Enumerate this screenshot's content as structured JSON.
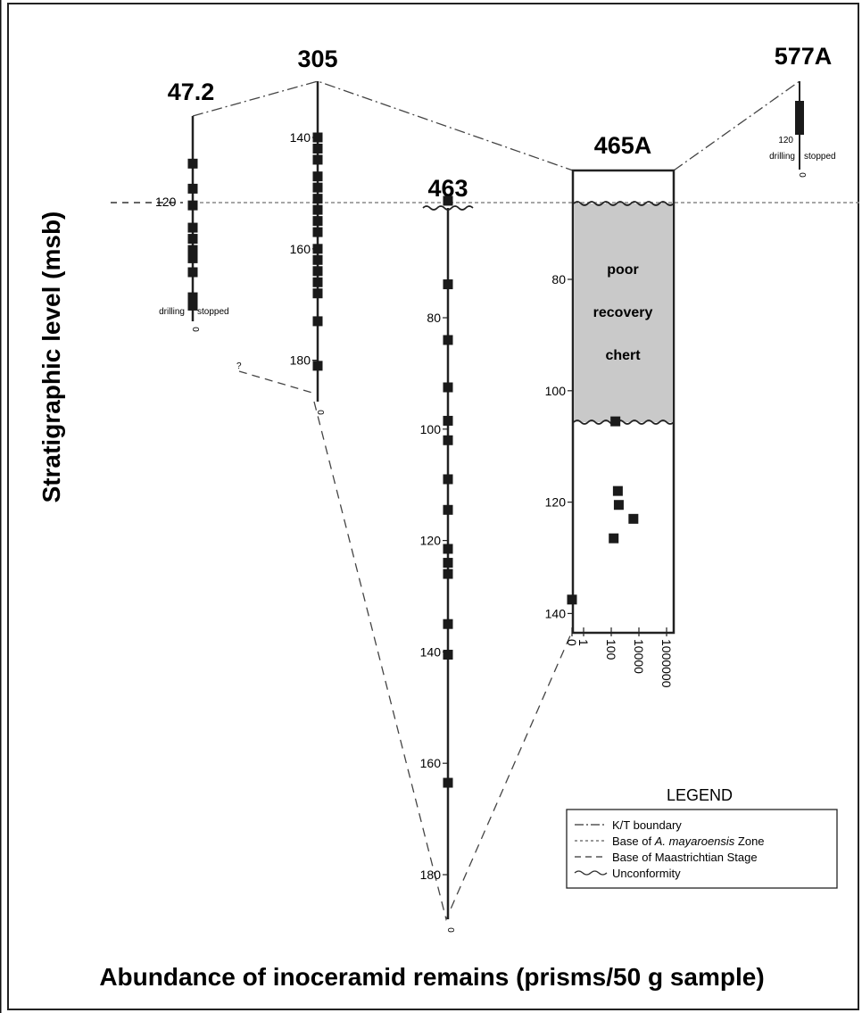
{
  "chart_data": {
    "type": "scatter",
    "title": "",
    "xlabel": "Abundance of inoceramid remains (prisms/50 g sample)",
    "ylabel": "Stratigraphic level (msb)",
    "sites": [
      {
        "name": "47.2",
        "depth_ticks": [
          120
        ],
        "abundance_zero_label": "0",
        "note_left": "drilling",
        "note_right": "stopped",
        "points": [
          {
            "y": 113,
            "x": 0
          },
          {
            "y": 117.5,
            "x": 0
          },
          {
            "y": 120.5,
            "x": 0
          },
          {
            "y": 124.5,
            "x": 0
          },
          {
            "y": 126.5,
            "x": 0
          },
          {
            "y": 128.5,
            "x": 0
          },
          {
            "y": 130,
            "x": 0
          },
          {
            "y": 132.5,
            "x": 0
          },
          {
            "y": 137,
            "x": 0
          },
          {
            "y": 138.5,
            "x": 0
          }
        ]
      },
      {
        "name": "305",
        "depth_ticks": [
          140,
          160,
          180
        ],
        "abundance_zero_label": "0",
        "question_mark": "?",
        "points": [
          {
            "y": 140,
            "x": 0
          },
          {
            "y": 142,
            "x": 0
          },
          {
            "y": 144,
            "x": 0
          },
          {
            "y": 147,
            "x": 0
          },
          {
            "y": 149,
            "x": 0
          },
          {
            "y": 151,
            "x": 0
          },
          {
            "y": 153,
            "x": 0
          },
          {
            "y": 155,
            "x": 0
          },
          {
            "y": 157,
            "x": 0
          },
          {
            "y": 160,
            "x": 0
          },
          {
            "y": 162,
            "x": 0
          },
          {
            "y": 164,
            "x": 0
          },
          {
            "y": 166,
            "x": 0
          },
          {
            "y": 168,
            "x": 0
          },
          {
            "y": 173,
            "x": 0
          },
          {
            "y": 181,
            "x": 0
          }
        ]
      },
      {
        "name": "463",
        "depth_ticks": [
          80,
          100,
          120,
          140,
          160,
          180
        ],
        "abundance_zero_label": "0",
        "points": [
          {
            "y": 59,
            "x": 0
          },
          {
            "y": 74,
            "x": 0
          },
          {
            "y": 84,
            "x": 0
          },
          {
            "y": 92.5,
            "x": 0
          },
          {
            "y": 98.5,
            "x": 0
          },
          {
            "y": 102,
            "x": 0
          },
          {
            "y": 109,
            "x": 0
          },
          {
            "y": 114.5,
            "x": 0
          },
          {
            "y": 121.5,
            "x": 0
          },
          {
            "y": 124,
            "x": 0
          },
          {
            "y": 126,
            "x": 0
          },
          {
            "y": 135,
            "x": 0
          },
          {
            "y": 140.5,
            "x": 0
          },
          {
            "y": 163.5,
            "x": 0
          }
        ]
      },
      {
        "name": "465A",
        "depth_ticks": [
          80,
          100,
          120,
          140
        ],
        "x_ticks": [
          "0",
          "1",
          "100",
          "10000",
          "1000000"
        ],
        "gray_zone_label": [
          "poor",
          "recovery",
          "chert"
        ],
        "points": [
          {
            "y": 105.5,
            "x": 200
          },
          {
            "y": 118,
            "x": 300
          },
          {
            "y": 120.5,
            "x": 350
          },
          {
            "y": 123,
            "x": 4000
          },
          {
            "y": 126.5,
            "x": 150
          },
          {
            "y": 137.5,
            "x": 0
          }
        ]
      },
      {
        "name": "577A",
        "depth_ticks": [
          120
        ],
        "abundance_zero_label": "0",
        "note_left": "drilling",
        "note_right": "stopped",
        "points": []
      }
    ],
    "reference_line_label": "120",
    "legend": {
      "title": "LEGEND",
      "placement": "bottom-right",
      "items": [
        {
          "label_parts": [
            "K/T boundary"
          ],
          "style": "dash-dot"
        },
        {
          "label_parts": [
            "Base of ",
            "A. mayaroensis",
            " Zone"
          ],
          "style": "dotted"
        },
        {
          "label_parts": [
            "Base of Maastrichtian Stage"
          ],
          "style": "dashed"
        },
        {
          "label_parts": [
            "Unconformity"
          ],
          "style": "wavy"
        }
      ]
    },
    "colors": {
      "marker": "#1a1a1a",
      "line": "#333333",
      "poor_recovery_zone": "#c9c9c9"
    }
  }
}
